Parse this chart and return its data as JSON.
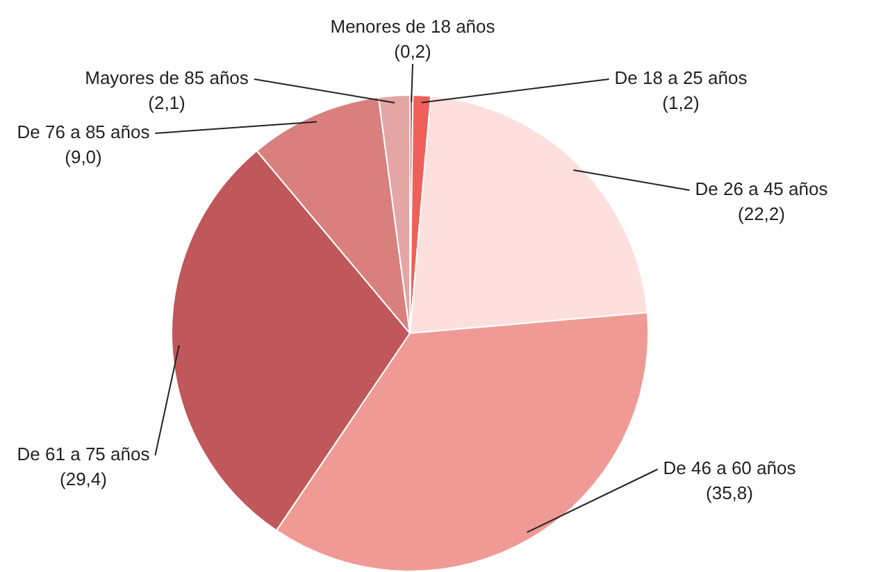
{
  "chart_data": {
    "type": "pie",
    "categories": [
      "Menores de 18 años",
      "De 18 a 25 años",
      "De 26 a 45 años",
      "De 46 a 60 años",
      "De 61 a 75 años",
      "De 76 a 85 años",
      "Mayores de 85 años"
    ],
    "values": [
      0.2,
      1.2,
      22.2,
      35.8,
      29.4,
      9.0,
      2.1
    ],
    "colors": [
      "#c0504d",
      "#f0605a",
      "#fde0de",
      "#f09a96",
      "#c0575a",
      "#d9807e",
      "#e3a6a4"
    ],
    "value_labels": [
      "(0,2)",
      "(1,2)",
      "(22,2)",
      "(35,8)",
      "(29,4)",
      "(9,0)",
      "(2,1)"
    ],
    "legend": false
  }
}
